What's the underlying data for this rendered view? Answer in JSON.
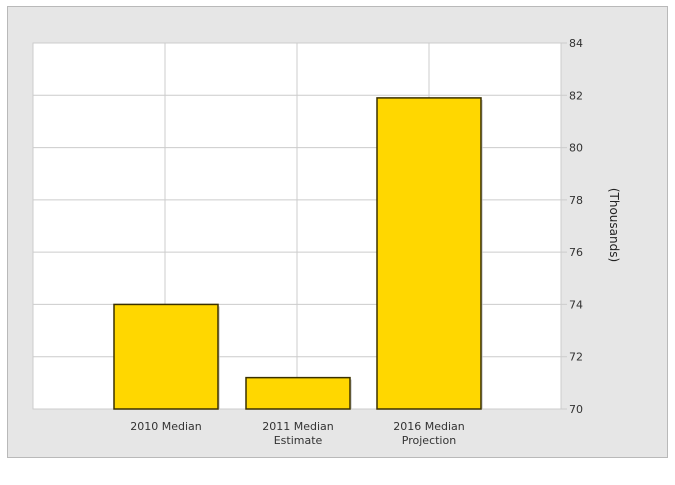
{
  "chart_data": {
    "type": "bar",
    "categories": [
      [
        "2010 Median"
      ],
      [
        "2011 Median",
        "Estimate"
      ],
      [
        "2016 Median",
        "Projection"
      ]
    ],
    "values": [
      74.0,
      71.2,
      81.9
    ],
    "ylabel": "(Thousands)",
    "ylim": [
      70,
      84
    ],
    "yticks": [
      70,
      72,
      74,
      76,
      78,
      80,
      82,
      84
    ],
    "y_axis_side": "right",
    "grid": true,
    "colors": {
      "bar_fill": "#ffd700",
      "bar_stroke": "#3a3000",
      "grid": "#cccccc",
      "plot_bg": "#ffffff",
      "frame_bg": "#e6e6e6"
    }
  }
}
